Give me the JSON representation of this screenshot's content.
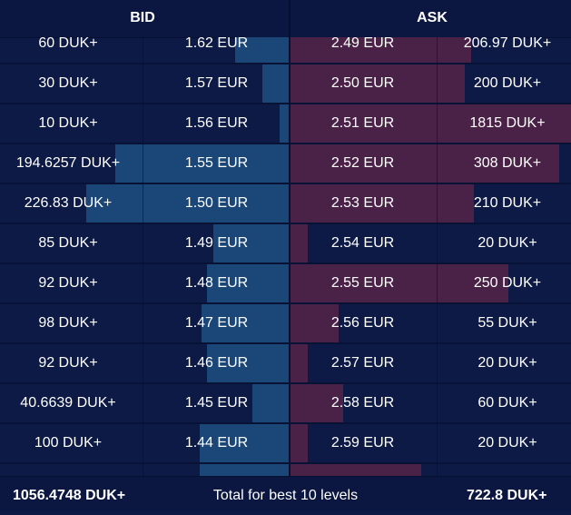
{
  "header": {
    "bid_title": "BID",
    "ask_title": "ASK"
  },
  "max_qty": 1815,
  "rows": [
    {
      "bid_qty": "60 DUK+",
      "bid_qty_value": 60,
      "bid_price": "1.62 EUR",
      "ask_price": "2.49 EUR",
      "ask_qty": "206.97 DUK+",
      "ask_qty_value": 206.97
    },
    {
      "bid_qty": "30 DUK+",
      "bid_qty_value": 30,
      "bid_price": "1.57 EUR",
      "ask_price": "2.50 EUR",
      "ask_qty": "200 DUK+",
      "ask_qty_value": 200
    },
    {
      "bid_qty": "10 DUK+",
      "bid_qty_value": 10,
      "bid_price": "1.56 EUR",
      "ask_price": "2.51 EUR",
      "ask_qty": "1815 DUK+",
      "ask_qty_value": 1815
    },
    {
      "bid_qty": "194.6257 DUK+",
      "bid_qty_value": 194.6257,
      "bid_price": "1.55 EUR",
      "ask_price": "2.52 EUR",
      "ask_qty": "308 DUK+",
      "ask_qty_value": 308
    },
    {
      "bid_qty": "226.83 DUK+",
      "bid_qty_value": 226.83,
      "bid_price": "1.50 EUR",
      "ask_price": "2.53 EUR",
      "ask_qty": "210 DUK+",
      "ask_qty_value": 210
    },
    {
      "bid_qty": "85 DUK+",
      "bid_qty_value": 85,
      "bid_price": "1.49 EUR",
      "ask_price": "2.54 EUR",
      "ask_qty": "20 DUK+",
      "ask_qty_value": 20
    },
    {
      "bid_qty": "92 DUK+",
      "bid_qty_value": 92,
      "bid_price": "1.48 EUR",
      "ask_price": "2.55 EUR",
      "ask_qty": "250 DUK+",
      "ask_qty_value": 250
    },
    {
      "bid_qty": "98 DUK+",
      "bid_qty_value": 98,
      "bid_price": "1.47 EUR",
      "ask_price": "2.56 EUR",
      "ask_qty": "55 DUK+",
      "ask_qty_value": 55
    },
    {
      "bid_qty": "92 DUK+",
      "bid_qty_value": 92,
      "bid_price": "1.46 EUR",
      "ask_price": "2.57 EUR",
      "ask_qty": "20 DUK+",
      "ask_qty_value": 20
    },
    {
      "bid_qty": "40.6639 DUK+",
      "bid_qty_value": 40.6639,
      "bid_price": "1.45 EUR",
      "ask_price": "2.58 EUR",
      "ask_qty": "60 DUK+",
      "ask_qty_value": 60
    },
    {
      "bid_qty": "100 DUK+",
      "bid_qty_value": 100,
      "bid_price": "1.44 EUR",
      "ask_price": "2.59 EUR",
      "ask_qty": "20 DUK+",
      "ask_qty_value": 20
    },
    {
      "bid_qty": "",
      "bid_qty_value": 100,
      "bid_price": "",
      "ask_price": "",
      "ask_qty": "",
      "ask_qty_value": 150
    }
  ],
  "footer": {
    "total_bid": "1056.4748 DUK+",
    "label": "Total for best 10 levels",
    "total_ask": "722.8 DUK+"
  },
  "colors": {
    "bid_bar": "#1b4678",
    "ask_bar": "#4a2147",
    "background": "#0d1a45"
  }
}
